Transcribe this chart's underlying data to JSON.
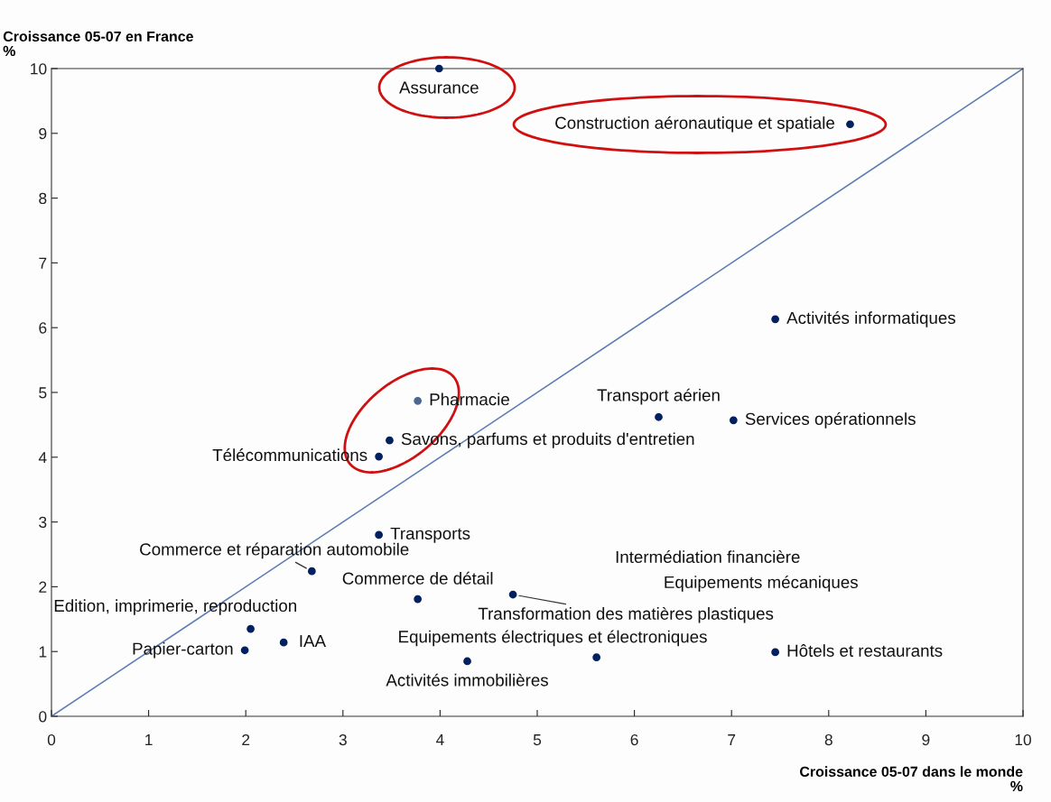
{
  "chart_data": {
    "type": "scatter",
    "xlabel": "Croissance 05-07 dans le monde\n%",
    "ylabel": "Croissance 05-07 en France\n%",
    "xlim": [
      0,
      10
    ],
    "ylim": [
      0,
      10
    ],
    "xticks": [
      0,
      1,
      2,
      3,
      4,
      5,
      6,
      7,
      8,
      9,
      10
    ],
    "yticks": [
      0,
      1,
      2,
      3,
      4,
      5,
      6,
      7,
      8,
      9,
      10
    ],
    "grid": false,
    "marker": "circle",
    "series": [
      {
        "name": "Assurance",
        "color": "#002060",
        "x": [
          3.99
        ],
        "values": [
          10.0
        ]
      },
      {
        "name": "Construction aéronautique et spatiale",
        "color": "#002060",
        "x": [
          8.22
        ],
        "values": [
          9.14
        ]
      },
      {
        "name": "Activités informatiques",
        "color": "#002060",
        "x": [
          7.45
        ],
        "values": [
          6.13
        ]
      },
      {
        "name": "Pharmacie",
        "color": "#4a6890",
        "x": [
          3.77
        ],
        "values": [
          4.87
        ]
      },
      {
        "name": "Savons, parfums et produits d'entretien",
        "color": "#002060",
        "x": [
          3.48
        ],
        "values": [
          4.26
        ]
      },
      {
        "name": "Télécommunications",
        "color": "#002060",
        "x": [
          3.37
        ],
        "values": [
          4.01
        ]
      },
      {
        "name": "Transport aérien",
        "color": "#002060",
        "x": [
          6.25
        ],
        "values": [
          4.62
        ]
      },
      {
        "name": "Services opérationnels",
        "color": "#002060",
        "x": [
          7.02
        ],
        "values": [
          4.57
        ]
      },
      {
        "name": "Transports",
        "color": "#002060",
        "x": [
          3.37
        ],
        "values": [
          2.8
        ]
      },
      {
        "name": "Commerce et réparation automobile",
        "color": "#002060",
        "x": [
          2.68
        ],
        "values": [
          2.24
        ]
      },
      {
        "name": "Commerce de détail",
        "color": "#002060",
        "x": [
          3.77
        ],
        "values": [
          1.81
        ]
      },
      {
        "name": "Transformation des matières plastiques",
        "color": "#002060",
        "x": [
          4.75
        ],
        "values": [
          1.88
        ]
      },
      {
        "name": "Edition, imprimerie, reproduction",
        "color": "#002060",
        "x": [
          2.05
        ],
        "values": [
          1.35
        ]
      },
      {
        "name": "IAA",
        "color": "#002060",
        "x": [
          2.39
        ],
        "values": [
          1.14
        ]
      },
      {
        "name": "Papier-carton",
        "color": "#002060",
        "x": [
          1.99
        ],
        "values": [
          1.02
        ]
      },
      {
        "name": "Activités immobilières",
        "color": "#002060",
        "x": [
          4.28
        ],
        "values": [
          0.85
        ]
      },
      {
        "name": "Equipements électriques et électroniques",
        "color": "#002060",
        "x": [
          5.61
        ],
        "values": [
          0.91
        ]
      },
      {
        "name": "Hôtels et restaurants",
        "color": "#002060",
        "x": [
          7.45
        ],
        "values": [
          0.99
        ]
      },
      {
        "type": "line",
        "color": "#5a7bb0",
        "x": [
          0,
          10
        ],
        "values": [
          0,
          10
        ],
        "marker": "none"
      }
    ],
    "annotations": [
      "Intermédiation financière",
      "Equipements mécaniques"
    ]
  }
}
